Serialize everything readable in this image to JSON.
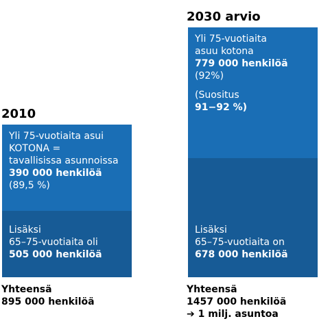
{
  "colors": {
    "upper": "#1a6eb5",
    "lower": "#175b96",
    "text_on_box": "#ffffff"
  },
  "chart_data": {
    "type": "bar",
    "stacked": true,
    "categories": [
      "2010",
      "2030 arvio"
    ],
    "series": [
      {
        "values": [
          390000,
          779000
        ]
      },
      {
        "values": [
          505000,
          678000
        ]
      }
    ],
    "totals": [
      895000,
      1457000
    ]
  },
  "col2010": {
    "title": "2010",
    "upper": {
      "l1": "Yli 75-vuotiaita asui",
      "l2": "KOTONA =",
      "l3": "tavallisissa asunnoissa",
      "l4": "390 000 henkilöä",
      "l5": "(89,5 %)"
    },
    "lower": {
      "l1": "Lisäksi",
      "l2": "65–75-vuotiaita oli",
      "l3": "505 000 henkilöä"
    },
    "total": {
      "l1": "Yhteensä",
      "l2": "895 000 henkilöä"
    }
  },
  "col2030": {
    "title": "2030 arvio",
    "upper": {
      "l1": "Yli 75-vuotiaita",
      "l2": "asuu kotona",
      "l3": "779 000 henkilöä",
      "l4": "(92%)",
      "l5": "(Suositus",
      "l6": "91−92 %)"
    },
    "lower": {
      "l1": "Lisäksi",
      "l2": "65–75-vuotiaita on",
      "l3": "678 000 henkilöä"
    },
    "total": {
      "l1": "Yhteensä",
      "l2": "1457 000 henkilöä",
      "l3": "➔ 1 milj. asuntoa"
    }
  }
}
